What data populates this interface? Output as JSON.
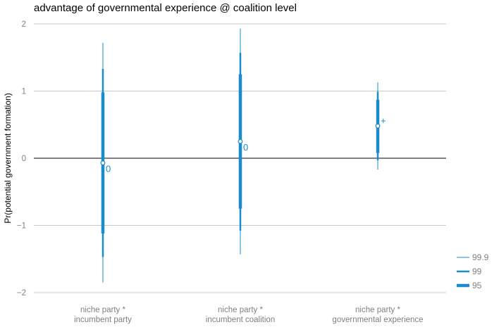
{
  "chart_data": {
    "type": "interval",
    "title": "advantage of governmental experience @ coalition level",
    "xlabel": "",
    "ylabel": "Pr(potential government formation)",
    "ylim": [
      -2.2,
      2.0
    ],
    "yticks": [
      2,
      1,
      0,
      -1,
      -2
    ],
    "ytick_labels": [
      "2",
      "1",
      "0",
      "−1",
      "−2"
    ],
    "grid": true,
    "zero_line": true,
    "series_color": "#1b8ccb",
    "categories": [
      {
        "line1": "niche party *",
        "line2": "incumbent party"
      },
      {
        "line1": "niche party *",
        "line2": "incumbent coalition"
      },
      {
        "line1": "niche party *",
        "line2": "governmental experience"
      }
    ],
    "points": [
      {
        "estimate": -0.07,
        "ci95": [
          -1.12,
          0.98
        ],
        "ci99": [
          -1.47,
          1.33
        ],
        "ci999": [
          -1.85,
          1.72
        ],
        "significance": "0"
      },
      {
        "estimate": 0.25,
        "ci95": [
          -0.75,
          1.25
        ],
        "ci99": [
          -1.08,
          1.57
        ],
        "ci999": [
          -1.43,
          1.93
        ],
        "significance": "0"
      },
      {
        "estimate": 0.48,
        "ci95": [
          0.08,
          0.87
        ],
        "ci99": [
          -0.03,
          0.99
        ],
        "ci999": [
          -0.17,
          1.13
        ],
        "significance": "+"
      }
    ],
    "legend": {
      "position": "bottom-right",
      "entries": [
        {
          "label": "99.9",
          "width": 1
        },
        {
          "label": "99",
          "width": 2.5
        },
        {
          "label": "95",
          "width": 4.5
        }
      ]
    }
  }
}
